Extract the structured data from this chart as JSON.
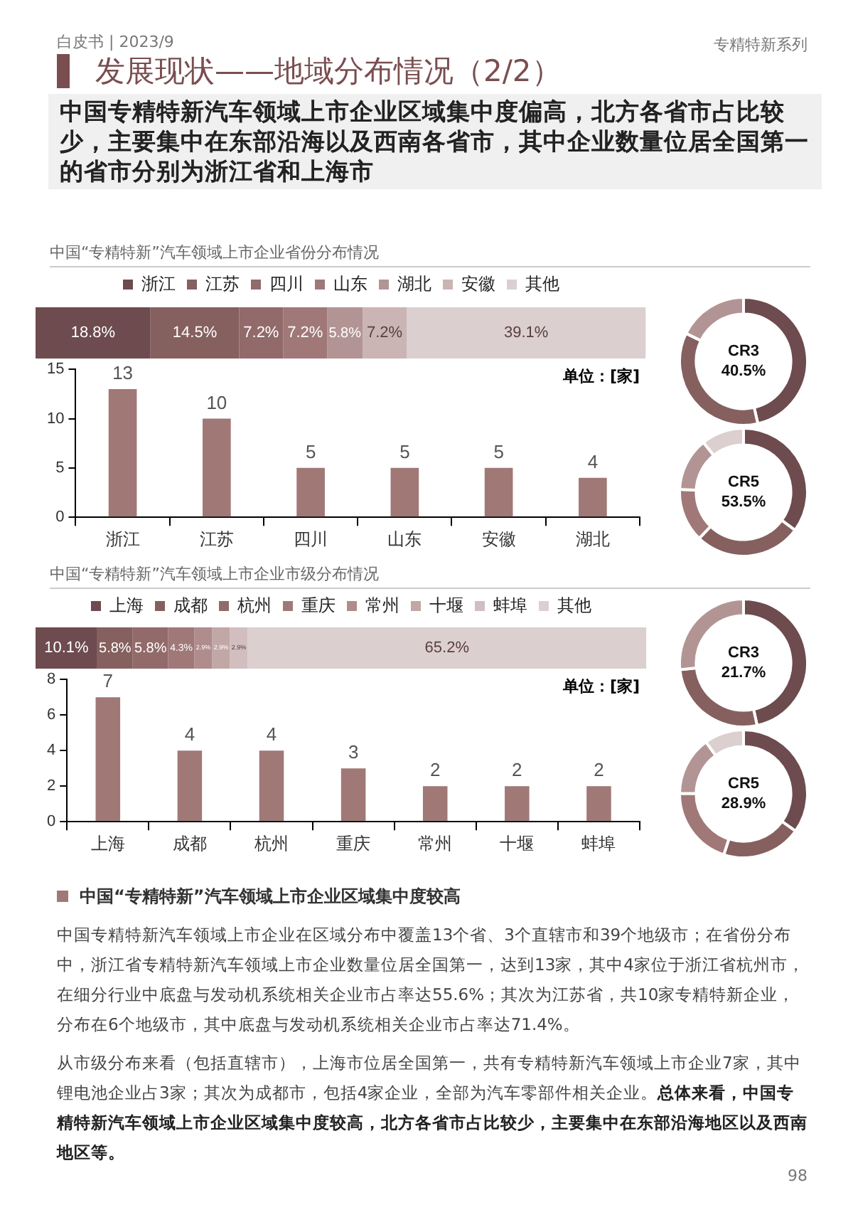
{
  "chart_data": [
    {
      "type": "bar",
      "title": "中国“专精特新”汽车领域上市企业省份分布情况",
      "orientation": "horizontal",
      "stacked": true,
      "legend": "top",
      "tick_labels": false,
      "categories": [
        null
      ],
      "series": [
        {
          "name": "浙江",
          "color": "#6d4b4e",
          "values": [
            18.8
          ],
          "value_labels": [
            "18.8%"
          ]
        },
        {
          "name": "江苏",
          "color": "#85605f",
          "values": [
            14.5
          ],
          "value_labels": [
            "14.5%"
          ]
        },
        {
          "name": "四川",
          "color": "#926a6a",
          "values": [
            7.2
          ],
          "value_labels": [
            "7.2%"
          ]
        },
        {
          "name": "山东",
          "color": "#a07878",
          "values": [
            7.2
          ],
          "value_labels": [
            "7.2%"
          ]
        },
        {
          "name": "湖北",
          "color": "#b39494",
          "values": [
            5.8
          ],
          "value_labels": [
            "5.8%"
          ]
        },
        {
          "name": "安徽",
          "color": "#cbb4b4",
          "values": [
            7.2
          ],
          "value_labels": [
            "7.2%"
          ]
        },
        {
          "name": "其他",
          "color": "#dccfcf",
          "values": [
            39.1
          ],
          "value_labels": [
            "39.1%"
          ]
        }
      ]
    },
    {
      "type": "bar",
      "categories": [
        "浙江",
        "江苏",
        "四川",
        "山东",
        "安徽",
        "湖北"
      ],
      "values": [
        13,
        10,
        5,
        5,
        5,
        4
      ],
      "color": "#a07876",
      "ylim": [
        0,
        15
      ],
      "yticks": [
        0,
        5,
        10,
        15
      ],
      "data_labels": true,
      "annotations": [
        "单位：[家]"
      ]
    },
    {
      "type": "donut",
      "title": "CR3",
      "categories": [
        null,
        null,
        null
      ],
      "values": [
        46.4,
        35.8,
        17.8
      ],
      "colors": [
        "#6d4b4e",
        "#85605f",
        "#b39494"
      ],
      "annotations": [
        "40.5%"
      ]
    },
    {
      "type": "donut",
      "title": "CR5",
      "categories": [
        null,
        null,
        null,
        null,
        null
      ],
      "values": [
        35.1,
        27.1,
        13.5,
        13.5,
        10.8
      ],
      "colors": [
        "#6d4b4e",
        "#85605f",
        "#a07878",
        "#b39494",
        "#dccfcf"
      ],
      "annotations": [
        "53.5%"
      ]
    },
    {
      "type": "bar",
      "title": "中国“专精特新”汽车领域上市企业市级分布情况",
      "orientation": "horizontal",
      "stacked": true,
      "legend": "top",
      "tick_labels": false,
      "categories": [
        null
      ],
      "series": [
        {
          "name": "上海",
          "color": "#6d4b4e",
          "values": [
            10.1
          ],
          "value_labels": [
            "10.1%"
          ]
        },
        {
          "name": "成都",
          "color": "#85605f",
          "values": [
            5.8
          ],
          "value_labels": [
            "5.8%"
          ]
        },
        {
          "name": "杭州",
          "color": "#926a6a",
          "values": [
            5.8
          ],
          "value_labels": [
            "5.8%"
          ]
        },
        {
          "name": "重庆",
          "color": "#a07878",
          "values": [
            4.3
          ],
          "value_labels": [
            "4.3%"
          ]
        },
        {
          "name": "常州",
          "color": "#b08c8c",
          "values": [
            2.9
          ],
          "value_labels": [
            "2.9%"
          ]
        },
        {
          "name": "十堰",
          "color": "#c2a7a7",
          "values": [
            2.9
          ],
          "value_labels": [
            "2.9%"
          ]
        },
        {
          "name": "蚌埠",
          "color": "#d2bebe",
          "values": [
            2.9
          ],
          "value_labels": [
            "2.9%"
          ]
        },
        {
          "name": "其他",
          "color": "#dccfcf",
          "values": [
            65.2
          ],
          "value_labels": [
            "65.2%"
          ]
        }
      ]
    },
    {
      "type": "bar",
      "categories": [
        "上海",
        "成都",
        "杭州",
        "重庆",
        "常州",
        "十堰",
        "蚌埠"
      ],
      "values": [
        7,
        4,
        4,
        3,
        2,
        2,
        2
      ],
      "color": "#a07876",
      "ylim": [
        0,
        8
      ],
      "yticks": [
        0,
        2,
        4,
        6,
        8
      ],
      "data_labels": true,
      "annotations": [
        "单位：[家]"
      ]
    },
    {
      "type": "donut",
      "title": "CR3",
      "categories": [
        null,
        null,
        null
      ],
      "values": [
        46.6,
        26.7,
        26.7
      ],
      "colors": [
        "#6d4b4e",
        "#85605f",
        "#b39494"
      ],
      "annotations": [
        "21.7%"
      ]
    },
    {
      "type": "donut",
      "title": "CR5",
      "categories": [
        null,
        null,
        null,
        null,
        null
      ],
      "values": [
        34.9,
        20.1,
        20.1,
        14.9,
        10.0
      ],
      "colors": [
        "#6d4b4e",
        "#85605f",
        "#a07878",
        "#b39494",
        "#dccfcf"
      ],
      "annotations": [
        "28.9%"
      ]
    },
    {
      "type": "other",
      "annotations": [
        "白皮书 | 2023/9",
        "专精特新系列",
        "发展现状——地域分布情况（2/2）",
        "中国专精特新汽车领域上市企业区域集中度偏高，北方各省市占比较少，主要集中在东部沿海以及西南各省市，其中企业数量位居全国第一的省市分别为浙江省和上海市",
        "中国“专精特新”汽车领域上市企业区域集中度较高",
        "中国专精特新汽车领域上市企业在区域分布中覆盖13个省、3个直辖市和39个地级市；在省份分布中，浙江省专精特新汽车领域上市企业数量位居全国第一，达到13家，其中4家位于浙江省杭州市，在细分行业中底盘与发动机系统相关企业市占率达55.6%；其次为江苏省，共10家专精特新企业，分布在6个地级市，其中底盘与发动机系统相关企业市占率达71.4%。",
        "从市级分布来看（包括直辖市），上海市位居全国第一，共有专精特新汽车领域上市企业7家，其中锂电池企业占3家；其次为成都市，包括4家企业，全部为汽车零部件相关企业。",
        "总体来看，中国专精特新汽车领域上市企业区域集中度较高，北方各省市占比较少，主要集中在东部沿海地区以及西南地区等。",
        "98"
      ]
    }
  ]
}
